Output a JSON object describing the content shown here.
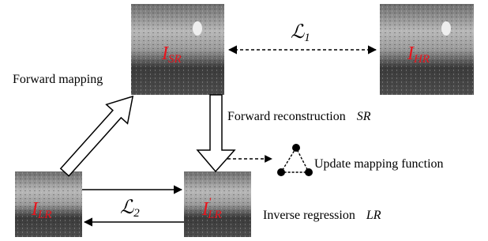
{
  "nodes": [
    {
      "symbol": "I",
      "subscript": "SR"
    },
    {
      "symbol": "I",
      "subscript": "HR"
    },
    {
      "symbol": "I",
      "subscript": "LR"
    },
    {
      "symbol": "I",
      "prime": "'",
      "subscript": "LR"
    }
  ],
  "losses": [
    {
      "symbol": "ℒ",
      "subscript": "1"
    },
    {
      "symbol": "ℒ",
      "subscript": "2"
    }
  ],
  "labels": {
    "forward_mapping": "Forward mapping",
    "forward_reconstruction": "Forward reconstruction",
    "forward_reconstruction_symbol": "SR",
    "update": "Update mapping function",
    "inverse_regression": "Inverse regression",
    "inverse_regression_symbol": "LR"
  }
}
